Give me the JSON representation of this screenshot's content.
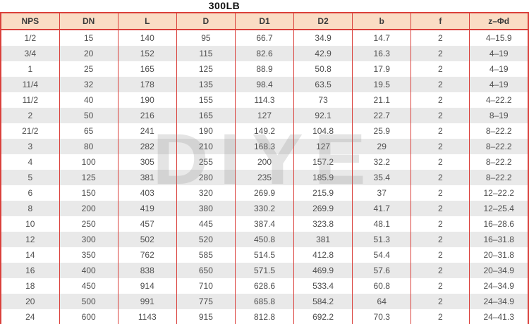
{
  "page_title": "300LB",
  "watermark_text": "DIYE",
  "colors": {
    "grid_red": "#da403b",
    "header_bg": "#fadcc4",
    "row_alt_bg": "#e9e9e9",
    "row_bg": "#ffffff",
    "header_text": "#3b3b3b",
    "cell_text": "#4f4f4f",
    "title_text": "#111111",
    "watermark_gray": "#8a8a8a"
  },
  "table": {
    "columns": [
      "NPS",
      "DN",
      "L",
      "D",
      "D1",
      "D2",
      "b",
      "f",
      "z–Φd"
    ],
    "rows": [
      [
        "1/2",
        "15",
        "140",
        "95",
        "66.7",
        "34.9",
        "14.7",
        "2",
        "4–15.9"
      ],
      [
        "3/4",
        "20",
        "152",
        "115",
        "82.6",
        "42.9",
        "16.3",
        "2",
        "4–19"
      ],
      [
        "1",
        "25",
        "165",
        "125",
        "88.9",
        "50.8",
        "17.9",
        "2",
        "4–19"
      ],
      [
        "11/4",
        "32",
        "178",
        "135",
        "98.4",
        "63.5",
        "19.5",
        "2",
        "4–19"
      ],
      [
        "11/2",
        "40",
        "190",
        "155",
        "114.3",
        "73",
        "21.1",
        "2",
        "4–22.2"
      ],
      [
        "2",
        "50",
        "216",
        "165",
        "127",
        "92.1",
        "22.7",
        "2",
        "8–19"
      ],
      [
        "21/2",
        "65",
        "241",
        "190",
        "149.2",
        "104.8",
        "25.9",
        "2",
        "8–22.2"
      ],
      [
        "3",
        "80",
        "282",
        "210",
        "168.3",
        "127",
        "29",
        "2",
        "8–22.2"
      ],
      [
        "4",
        "100",
        "305",
        "255",
        "200",
        "157.2",
        "32.2",
        "2",
        "8–22.2"
      ],
      [
        "5",
        "125",
        "381",
        "280",
        "235",
        "185.9",
        "35.4",
        "2",
        "8–22.2"
      ],
      [
        "6",
        "150",
        "403",
        "320",
        "269.9",
        "215.9",
        "37",
        "2",
        "12–22.2"
      ],
      [
        "8",
        "200",
        "419",
        "380",
        "330.2",
        "269.9",
        "41.7",
        "2",
        "12–25.4"
      ],
      [
        "10",
        "250",
        "457",
        "445",
        "387.4",
        "323.8",
        "48.1",
        "2",
        "16–28.6"
      ],
      [
        "12",
        "300",
        "502",
        "520",
        "450.8",
        "381",
        "51.3",
        "2",
        "16–31.8"
      ],
      [
        "14",
        "350",
        "762",
        "585",
        "514.5",
        "412.8",
        "54.4",
        "2",
        "20–31.8"
      ],
      [
        "16",
        "400",
        "838",
        "650",
        "571.5",
        "469.9",
        "57.6",
        "2",
        "20–34.9"
      ],
      [
        "18",
        "450",
        "914",
        "710",
        "628.6",
        "533.4",
        "60.8",
        "2",
        "24–34.9"
      ],
      [
        "20",
        "500",
        "991",
        "775",
        "685.8",
        "584.2",
        "64",
        "2",
        "24–34.9"
      ],
      [
        "24",
        "600",
        "1143",
        "915",
        "812.8",
        "692.2",
        "70.3",
        "2",
        "24–41.3"
      ]
    ]
  }
}
